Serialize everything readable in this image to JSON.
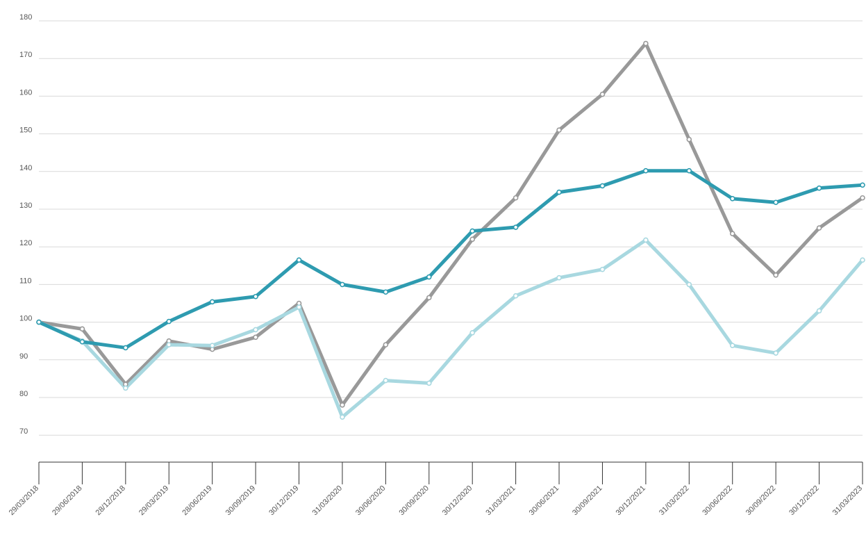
{
  "chart_data": {
    "type": "line",
    "title": "",
    "xlabel": "",
    "ylabel": "",
    "ylim": [
      70,
      180
    ],
    "yticks": [
      70,
      80,
      90,
      100,
      110,
      120,
      130,
      140,
      150,
      160,
      170,
      180
    ],
    "grid": true,
    "categories": [
      "29/03/2018",
      "29/06/2018",
      "28/12/2018",
      "29/03/2019",
      "28/06/2019",
      "30/09/2019",
      "30/12/2019",
      "31/03/2020",
      "30/06/2020",
      "30/09/2020",
      "30/12/2020",
      "31/03/2021",
      "30/06/2021",
      "30/09/2021",
      "30/12/2021",
      "31/03/2022",
      "30/06/2022",
      "30/09/2022",
      "30/12/2022",
      "31/03/2023"
    ],
    "series": [
      {
        "color": "#999999",
        "values": [
          100,
          98.2,
          83.5,
          95,
          92.8,
          96,
          105,
          78,
          94,
          106.5,
          122,
          133,
          151,
          160.5,
          174,
          148.5,
          123.5,
          112.5,
          125,
          133
        ]
      },
      {
        "color": "#a8d8e0",
        "values": [
          100,
          95,
          82.5,
          94,
          93.8,
          98,
          104,
          74.8,
          84.5,
          83.8,
          97.2,
          107,
          111.8,
          114,
          121.8,
          110,
          93.8,
          91.8,
          103,
          116.5
        ]
      },
      {
        "color": "#2e9bb0",
        "values": [
          100,
          94.8,
          93.2,
          100.2,
          105.4,
          106.8,
          116.5,
          110,
          108,
          112,
          124.2,
          125.2,
          134.5,
          136.2,
          140.2,
          140.2,
          132.8,
          131.8,
          135.6,
          136.4
        ]
      }
    ]
  }
}
